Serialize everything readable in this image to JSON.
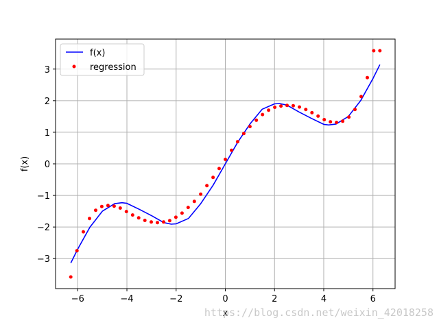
{
  "chart_data": {
    "type": "line",
    "title": "",
    "xlabel": "x",
    "ylabel": "f(x)",
    "xlim": [
      -6.9,
      6.9
    ],
    "ylim": [
      -3.95,
      3.95
    ],
    "xticks": [
      -6,
      -4,
      -2,
      0,
      2,
      4,
      6
    ],
    "yticks": [
      -3,
      -2,
      -1,
      0,
      1,
      2,
      3
    ],
    "grid": true,
    "legend_position": "top-left",
    "series": [
      {
        "name": "f(x)",
        "kind": "line",
        "color": "#0000ff",
        "x": [
          -6.28,
          -6.0,
          -5.5,
          -5.0,
          -4.5,
          -4.2,
          -4.0,
          -3.5,
          -3.0,
          -2.5,
          -2.2,
          -2.0,
          -1.5,
          -1.0,
          -0.5,
          0.0,
          0.5,
          1.0,
          1.5,
          2.0,
          2.2,
          2.5,
          3.0,
          3.5,
          4.0,
          4.2,
          4.5,
          5.0,
          5.5,
          6.0,
          6.28
        ],
        "y": [
          -3.14,
          -2.7,
          -2.0,
          -1.5,
          -1.26,
          -1.23,
          -1.25,
          -1.44,
          -1.64,
          -1.86,
          -1.91,
          -1.9,
          -1.73,
          -1.26,
          -0.68,
          0.0,
          0.68,
          1.26,
          1.73,
          1.9,
          1.91,
          1.86,
          1.64,
          1.44,
          1.25,
          1.23,
          1.26,
          1.5,
          2.0,
          2.7,
          3.14
        ]
      },
      {
        "name": "regression",
        "kind": "scatter",
        "color": "#ff0000",
        "x": [
          -6.28,
          -6.03,
          -5.77,
          -5.52,
          -5.27,
          -5.02,
          -4.77,
          -4.52,
          -4.27,
          -4.02,
          -3.77,
          -3.52,
          -3.27,
          -3.01,
          -2.76,
          -2.51,
          -2.26,
          -2.01,
          -1.76,
          -1.51,
          -1.26,
          -1.0,
          -0.75,
          -0.5,
          -0.25,
          0.0,
          0.25,
          0.5,
          0.75,
          1.0,
          1.26,
          1.51,
          1.76,
          2.01,
          2.26,
          2.51,
          2.76,
          3.01,
          3.27,
          3.52,
          3.77,
          4.02,
          4.27,
          4.52,
          4.77,
          5.02,
          5.27,
          5.52,
          5.77,
          6.03,
          6.28
        ],
        "y": [
          -3.58,
          -2.75,
          -2.15,
          -1.73,
          -1.47,
          -1.35,
          -1.32,
          -1.34,
          -1.4,
          -1.51,
          -1.62,
          -1.71,
          -1.79,
          -1.84,
          -1.86,
          -1.84,
          -1.8,
          -1.69,
          -1.56,
          -1.38,
          -1.19,
          -0.96,
          -0.69,
          -0.43,
          -0.15,
          0.14,
          0.43,
          0.7,
          0.96,
          1.18,
          1.38,
          1.56,
          1.7,
          1.79,
          1.83,
          1.85,
          1.84,
          1.8,
          1.72,
          1.62,
          1.51,
          1.4,
          1.33,
          1.31,
          1.35,
          1.48,
          1.72,
          2.13,
          2.73,
          3.58,
          3.58
        ]
      }
    ]
  },
  "watermark": "https://blog.csdn.net/weixin_42018258"
}
